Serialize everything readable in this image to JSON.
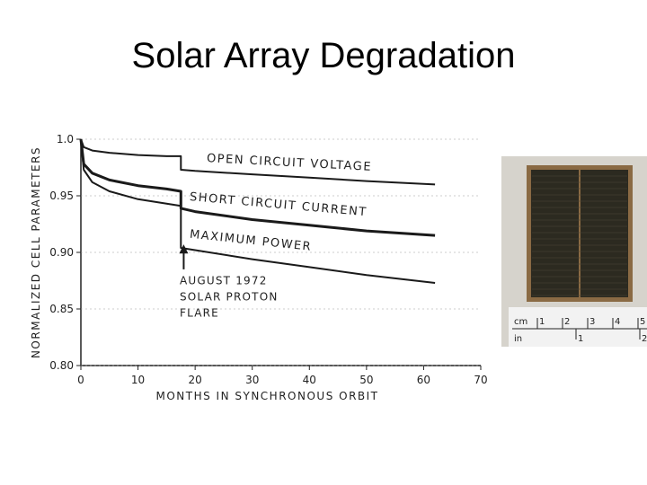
{
  "slide": {
    "title": "Solar Array Degradation"
  },
  "chart_data": {
    "type": "line",
    "xlabel": "MONTHS IN SYNCHRONOUS ORBIT",
    "ylabel": "NORMALIZED CELL PARAMETERS",
    "xlim": [
      0,
      70
    ],
    "ylim": [
      0.8,
      1.0
    ],
    "x_ticks": [
      "0",
      "10",
      "20",
      "30",
      "40",
      "50",
      "60",
      "70"
    ],
    "y_ticks": [
      "1.0",
      "0.95",
      "0.90",
      "0.85",
      "0.80"
    ],
    "series": [
      {
        "name": "OPEN CIRCUIT VOLTAGE",
        "x": [
          0,
          0.5,
          2,
          5,
          10,
          15,
          17.5,
          17.5,
          20,
          30,
          40,
          50,
          62
        ],
        "y": [
          1.0,
          0.993,
          0.99,
          0.988,
          0.986,
          0.985,
          0.985,
          0.973,
          0.972,
          0.969,
          0.966,
          0.963,
          0.96
        ]
      },
      {
        "name": "SHORT CIRCUIT CURRENT",
        "x": [
          0,
          0.5,
          2,
          5,
          10,
          15,
          17.5,
          17.5,
          20,
          30,
          40,
          50,
          62
        ],
        "y": [
          1.0,
          0.978,
          0.97,
          0.964,
          0.959,
          0.956,
          0.954,
          0.939,
          0.936,
          0.929,
          0.924,
          0.919,
          0.915
        ]
      },
      {
        "name": "MAXIMUM POWER",
        "x": [
          0,
          0.5,
          2,
          5,
          10,
          15,
          17.5,
          17.5,
          20,
          30,
          40,
          50,
          62
        ],
        "y": [
          1.0,
          0.973,
          0.962,
          0.954,
          0.947,
          0.943,
          0.941,
          0.904,
          0.902,
          0.894,
          0.887,
          0.88,
          0.873
        ]
      }
    ],
    "annotations": [
      {
        "text": [
          "AUGUST 1972",
          "SOLAR PROTON",
          "FLARE"
        ],
        "x": 18,
        "y": 0.89
      }
    ]
  },
  "photo": {
    "ruler_cm_labels": [
      "cm",
      "1",
      "2",
      "3",
      "4",
      "5"
    ],
    "ruler_in_labels": [
      "in",
      "1",
      "2"
    ],
    "colors": {
      "background": "#d6d3cc",
      "cell": "#2c2a20",
      "frame": "#8a6a44"
    }
  }
}
